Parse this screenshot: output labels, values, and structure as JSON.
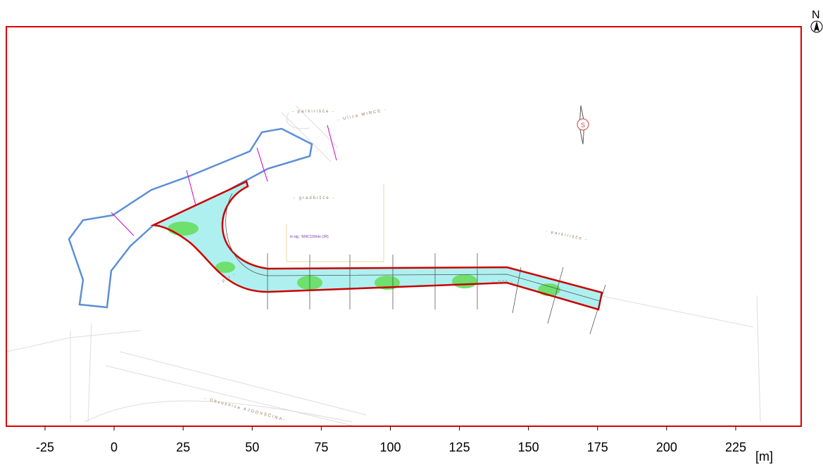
{
  "map": {
    "north": "N",
    "labels": {
      "street": "- Ulica MIRCE -",
      "parking_top": "- parkirišče -",
      "parking_right": "- parkirišče -",
      "site": "- gradbišče -",
      "path": "- pot -",
      "path_right": "- pot -",
      "bypass": "- Obvoznica AJDOVŠČINA-",
      "note": "tx sig.: %NC110mm (JR)",
      "compass": "S"
    },
    "scale": {
      "unit": "[m]",
      "xlim": [
        -39,
        248.7
      ],
      "xticks": [
        -25,
        0,
        25,
        50,
        75,
        100,
        125,
        150,
        175,
        200,
        225
      ]
    }
  }
}
